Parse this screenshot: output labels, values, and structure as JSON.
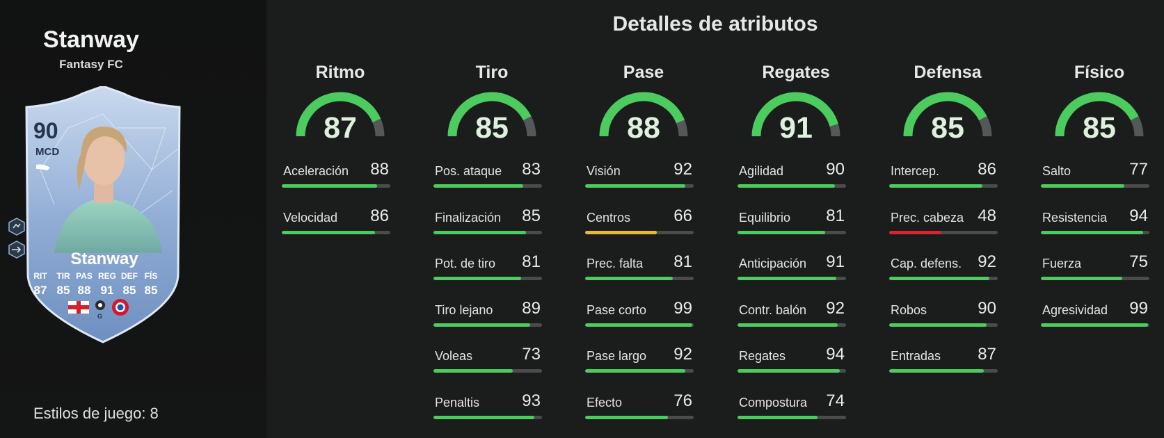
{
  "player": {
    "name": "Stanway",
    "version": "Fantasy FC",
    "card": {
      "rating": "90",
      "position": "MCD",
      "name": "Stanway",
      "stat_labels": [
        "RIT",
        "TIR",
        "PAS",
        "REG",
        "DEF",
        "FÍS"
      ],
      "stat_values": [
        "87",
        "85",
        "88",
        "91",
        "85",
        "85"
      ],
      "nation": "England flag",
      "league": "league-logo",
      "club": "bayern-badge"
    },
    "playstyles_icons": [
      "playstyle-icon-1",
      "playstyle-icon-2"
    ],
    "playstyles_text": "Estilos de juego: 8"
  },
  "title": "Detalles de atributos",
  "colors": {
    "high": "#4ccb5e",
    "medium": "#e9b93c",
    "low": "#d9262e",
    "track": "#4a4c4c"
  },
  "categories": [
    {
      "name": "Ritmo",
      "value": 87,
      "stats": [
        {
          "label": "Aceleración",
          "value": 88
        },
        {
          "label": "Velocidad",
          "value": 86
        }
      ]
    },
    {
      "name": "Tiro",
      "value": 85,
      "stats": [
        {
          "label": "Pos. ataque",
          "value": 83
        },
        {
          "label": "Finalización",
          "value": 85
        },
        {
          "label": "Pot. de tiro",
          "value": 81
        },
        {
          "label": "Tiro lejano",
          "value": 89
        },
        {
          "label": "Voleas",
          "value": 73
        },
        {
          "label": "Penaltis",
          "value": 93
        }
      ]
    },
    {
      "name": "Pase",
      "value": 88,
      "stats": [
        {
          "label": "Visión",
          "value": 92
        },
        {
          "label": "Centros",
          "value": 66
        },
        {
          "label": "Prec. falta",
          "value": 81
        },
        {
          "label": "Pase corto",
          "value": 99
        },
        {
          "label": "Pase largo",
          "value": 92
        },
        {
          "label": "Efecto",
          "value": 76
        }
      ]
    },
    {
      "name": "Regates",
      "value": 91,
      "stats": [
        {
          "label": "Agilidad",
          "value": 90
        },
        {
          "label": "Equilibrio",
          "value": 81
        },
        {
          "label": "Anticipación",
          "value": 91
        },
        {
          "label": "Contr. balón",
          "value": 92
        },
        {
          "label": "Regates",
          "value": 94
        },
        {
          "label": "Compostura",
          "value": 74
        }
      ]
    },
    {
      "name": "Defensa",
      "value": 85,
      "stats": [
        {
          "label": "Intercep.",
          "value": 86
        },
        {
          "label": "Prec. cabeza",
          "value": 48
        },
        {
          "label": "Cap. defens.",
          "value": 92
        },
        {
          "label": "Robos",
          "value": 90
        },
        {
          "label": "Entradas",
          "value": 87
        }
      ]
    },
    {
      "name": "Físico",
      "value": 85,
      "stats": [
        {
          "label": "Salto",
          "value": 77
        },
        {
          "label": "Resistencia",
          "value": 94
        },
        {
          "label": "Fuerza",
          "value": 75
        },
        {
          "label": "Agresividad",
          "value": 99
        }
      ]
    }
  ]
}
